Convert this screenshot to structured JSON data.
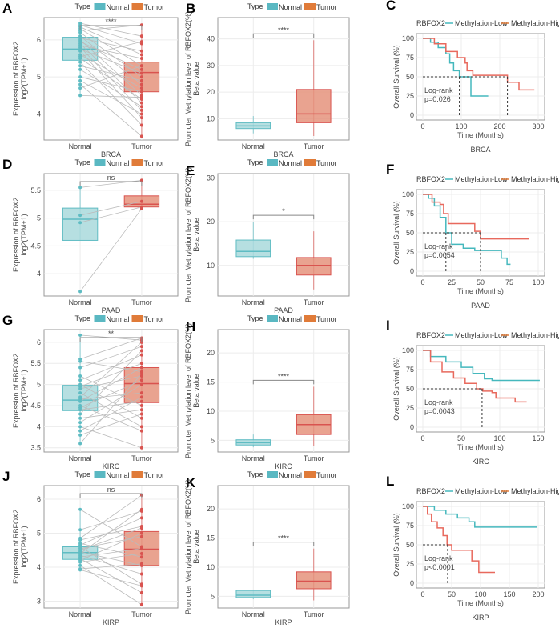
{
  "colors": {
    "normal": "#5ab8c2",
    "tumor": "#e07b39",
    "normal_fill": "#a9d9dc",
    "tumor_fill": "#e5937c",
    "normal_edge": "#5fbcc3",
    "tumor_edge": "#d9534f",
    "km_low": "#45b8bd",
    "km_high": "#e8695d"
  },
  "legend_box": {
    "title": "Type",
    "normal": "Normal",
    "tumor": "Tumor"
  },
  "legend_km": {
    "title": "RBFOX2",
    "low": "Methylation-Low",
    "high": "Methylation-High"
  },
  "labels": {
    "expr_y1": "Expression of RBFOX2",
    "expr_y2": "log2(TPM+1)",
    "meth_y1": "Promoter Methylation level of RBFOX2(%)",
    "meth_y2": "Beta value",
    "km_y": "Overall Survival (%)",
    "km_x": "Time (Months)",
    "logrank": "Log-rank",
    "normal": "Normal",
    "tumor": "Tumor"
  },
  "chart_data": [
    {
      "panel": "A",
      "type": "box-paired",
      "cancer": "BRCA",
      "ylim": [
        3.3,
        6.6
      ],
      "yticks": [
        4,
        5,
        6
      ],
      "sig": "****",
      "normal": {
        "q1": 5.45,
        "median": 5.75,
        "q3": 6.07,
        "min": 4.5,
        "max": 6.45
      },
      "tumor": {
        "q1": 4.6,
        "median": 5.12,
        "q3": 5.4,
        "min": 3.4,
        "max": 6.4
      },
      "pairs": [
        [
          6.45,
          6.1
        ],
        [
          6.4,
          5.9
        ],
        [
          6.35,
          5.6
        ],
        [
          6.3,
          5.3
        ],
        [
          6.25,
          6.4
        ],
        [
          6.2,
          5.0
        ],
        [
          6.1,
          4.8
        ],
        [
          6.05,
          5.7
        ],
        [
          6.0,
          4.5
        ],
        [
          5.95,
          5.2
        ],
        [
          5.9,
          4.3
        ],
        [
          5.85,
          5.5
        ],
        [
          5.8,
          4.1
        ],
        [
          5.75,
          5.1
        ],
        [
          5.7,
          3.9
        ],
        [
          5.6,
          4.7
        ],
        [
          5.55,
          5.95
        ],
        [
          5.5,
          4.4
        ],
        [
          5.4,
          3.7
        ],
        [
          5.3,
          4.9
        ],
        [
          5.2,
          4.2
        ],
        [
          5.0,
          4.6
        ],
        [
          4.9,
          4.0
        ],
        [
          4.8,
          3.4
        ],
        [
          4.7,
          5.3
        ],
        [
          4.5,
          4.45
        ]
      ]
    },
    {
      "panel": "B",
      "type": "box",
      "cancer": "BRCA",
      "ylim": [
        2,
        48
      ],
      "yticks": [
        10,
        20,
        30,
        40
      ],
      "sig": "****",
      "normal": {
        "q1": 6.3,
        "median": 7.3,
        "q3": 8.5,
        "min": 4.5,
        "max": 11
      },
      "tumor": {
        "q1": 8.5,
        "median": 11.8,
        "q3": 21,
        "min": 3.5,
        "max": 39.5
      }
    },
    {
      "panel": "C",
      "type": "km",
      "cancer": "BRCA",
      "xlim": [
        0,
        300
      ],
      "xticks": [
        0,
        100,
        200,
        300
      ],
      "yticks": [
        0,
        25,
        50,
        75,
        100
      ],
      "pvalue": "p=0.026",
      "medians": [
        95,
        220
      ],
      "low": [
        [
          0,
          100
        ],
        [
          20,
          95
        ],
        [
          40,
          88
        ],
        [
          60,
          80
        ],
        [
          70,
          68
        ],
        [
          80,
          58
        ],
        [
          95,
          50
        ],
        [
          125,
          50
        ],
        [
          125,
          25
        ],
        [
          170,
          25
        ]
      ],
      "high": [
        [
          0,
          100
        ],
        [
          30,
          93
        ],
        [
          60,
          83
        ],
        [
          90,
          75
        ],
        [
          110,
          68
        ],
        [
          115,
          58
        ],
        [
          130,
          52
        ],
        [
          220,
          51
        ],
        [
          220,
          43
        ],
        [
          250,
          43
        ],
        [
          250,
          33
        ],
        [
          290,
          33
        ]
      ]
    },
    {
      "panel": "D",
      "type": "box-paired",
      "cancer": "PAAD",
      "ylim": [
        3.6,
        5.8
      ],
      "yticks": [
        4.0,
        4.5,
        5.0,
        5.5
      ],
      "sig": "ns",
      "normal": {
        "q1": 4.6,
        "median": 4.98,
        "q3": 5.18,
        "min": 4.6,
        "max": 5.55
      },
      "tumor": {
        "q1": 5.2,
        "median": 5.25,
        "q3": 5.4,
        "min": 5.15,
        "max": 5.68
      },
      "pairs": [
        [
          5.55,
          5.68
        ],
        [
          5.05,
          5.3
        ],
        [
          4.92,
          5.2
        ],
        [
          3.68,
          5.17
        ]
      ]
    },
    {
      "panel": "E",
      "type": "box",
      "cancer": "PAAD",
      "ylim": [
        3,
        31
      ],
      "yticks": [
        10,
        20,
        30
      ],
      "sig": "*",
      "normal": {
        "q1": 12,
        "median": 13.2,
        "q3": 15.8,
        "min": 11.5,
        "max": 20
      },
      "tumor": {
        "q1": 7.8,
        "median": 10,
        "q3": 11.8,
        "min": 4.5,
        "max": 17.8
      }
    },
    {
      "panel": "F",
      "type": "km",
      "cancer": "PAAD",
      "xlim": [
        0,
        100
      ],
      "xticks": [
        0,
        25,
        50,
        75,
        100
      ],
      "yticks": [
        0,
        25,
        50,
        75,
        100
      ],
      "pvalue": "p=0.0054",
      "medians": [
        20,
        50
      ],
      "low": [
        [
          0,
          100
        ],
        [
          5,
          95
        ],
        [
          10,
          85
        ],
        [
          15,
          70
        ],
        [
          20,
          50
        ],
        [
          25,
          35
        ],
        [
          35,
          30
        ],
        [
          45,
          27
        ],
        [
          68,
          26
        ],
        [
          68,
          17
        ],
        [
          73,
          17
        ],
        [
          73,
          9
        ],
        [
          76,
          9
        ]
      ],
      "high": [
        [
          0,
          100
        ],
        [
          8,
          90
        ],
        [
          15,
          87
        ],
        [
          18,
          75
        ],
        [
          22,
          62
        ],
        [
          45,
          62
        ],
        [
          45,
          52
        ],
        [
          50,
          52
        ],
        [
          50,
          42
        ],
        [
          92,
          42
        ]
      ]
    },
    {
      "panel": "G",
      "type": "box-paired",
      "cancer": "KIRC",
      "ylim": [
        3.4,
        6.3
      ],
      "yticks": [
        3.5,
        4.0,
        4.5,
        5.0,
        5.5,
        6.0
      ],
      "sig": "**",
      "normal": {
        "q1": 4.38,
        "median": 4.63,
        "q3": 4.98,
        "min": 3.6,
        "max": 6.17
      },
      "tumor": {
        "q1": 4.57,
        "median": 5.02,
        "q3": 5.4,
        "min": 3.5,
        "max": 6.1
      },
      "pairs": [
        [
          6.17,
          6.05
        ],
        [
          5.6,
          6.1
        ],
        [
          5.55,
          5.3
        ],
        [
          5.4,
          5.9
        ],
        [
          5.2,
          4.5
        ],
        [
          5.1,
          5.7
        ],
        [
          5.0,
          4.2
        ],
        [
          4.95,
          5.5
        ],
        [
          4.9,
          5.2
        ],
        [
          4.8,
          4.0
        ],
        [
          4.7,
          6.0
        ],
        [
          4.65,
          4.8
        ],
        [
          4.6,
          5.4
        ],
        [
          4.5,
          3.9
        ],
        [
          4.45,
          5.1
        ],
        [
          4.4,
          4.6
        ],
        [
          4.3,
          5.8
        ],
        [
          4.2,
          4.4
        ],
        [
          4.1,
          5.0
        ],
        [
          4.0,
          3.5
        ],
        [
          3.9,
          4.7
        ],
        [
          3.8,
          4.3
        ],
        [
          3.6,
          5.25
        ]
      ]
    },
    {
      "panel": "H",
      "type": "box",
      "cancer": "KIRC",
      "ylim": [
        3,
        24
      ],
      "yticks": [
        5,
        10,
        15,
        20
      ],
      "sig": "****",
      "normal": {
        "q1": 4.2,
        "median": 4.6,
        "q3": 5.1,
        "min": 3.8,
        "max": 6
      },
      "tumor": {
        "q1": 6,
        "median": 7.7,
        "q3": 9.4,
        "min": 4,
        "max": 14.2
      }
    },
    {
      "panel": "I",
      "type": "km",
      "cancer": "KIRC",
      "xlim": [
        0,
        150
      ],
      "xticks": [
        0,
        50,
        100,
        150
      ],
      "yticks": [
        0,
        25,
        50,
        75,
        100
      ],
      "pvalue": "p=0.0043",
      "medians": [
        77
      ],
      "low": [
        [
          0,
          100
        ],
        [
          10,
          92
        ],
        [
          30,
          85
        ],
        [
          50,
          78
        ],
        [
          65,
          70
        ],
        [
          80,
          63
        ],
        [
          90,
          61
        ],
        [
          152,
          61
        ]
      ],
      "high": [
        [
          0,
          100
        ],
        [
          10,
          85
        ],
        [
          25,
          72
        ],
        [
          40,
          64
        ],
        [
          55,
          57
        ],
        [
          70,
          50
        ],
        [
          78,
          47
        ],
        [
          90,
          45
        ],
        [
          95,
          38
        ],
        [
          120,
          38
        ],
        [
          120,
          33
        ],
        [
          135,
          33
        ]
      ]
    },
    {
      "panel": "J",
      "type": "box-paired",
      "cancer": "KIRP",
      "ylim": [
        2.8,
        6.4
      ],
      "yticks": [
        3,
        4,
        5,
        6
      ],
      "sig": "ns",
      "normal": {
        "q1": 4.23,
        "median": 4.43,
        "q3": 4.6,
        "min": 3.92,
        "max": 5.7
      },
      "tumor": {
        "q1": 4.05,
        "median": 4.53,
        "q3": 5.05,
        "min": 2.9,
        "max": 6.12
      },
      "pairs": [
        [
          5.7,
          4.6
        ],
        [
          5.1,
          5.65
        ],
        [
          4.85,
          6.12
        ],
        [
          4.8,
          5.2
        ],
        [
          4.7,
          4.3
        ],
        [
          4.65,
          5.45
        ],
        [
          4.6,
          3.5
        ],
        [
          4.55,
          4.9
        ],
        [
          4.5,
          5.15
        ],
        [
          4.45,
          4.05
        ],
        [
          4.4,
          5.7
        ],
        [
          4.35,
          3.8
        ],
        [
          4.3,
          4.55
        ],
        [
          4.25,
          3.25
        ],
        [
          4.2,
          5.0
        ],
        [
          4.15,
          4.4
        ],
        [
          4.05,
          2.9
        ],
        [
          3.95,
          4.1
        ],
        [
          3.92,
          3.45
        ]
      ]
    },
    {
      "panel": "K",
      "type": "box",
      "cancer": "KIRP",
      "ylim": [
        3,
        24
      ],
      "yticks": [
        5,
        10,
        15,
        20
      ],
      "sig": "****",
      "normal": {
        "q1": 4.8,
        "median": 5.2,
        "q3": 6,
        "min": 4.5,
        "max": 6
      },
      "tumor": {
        "q1": 6.3,
        "median": 7.6,
        "q3": 9.2,
        "min": 4.3,
        "max": 13.2
      }
    },
    {
      "panel": "L",
      "type": "km",
      "cancer": "KIRP",
      "xlim": [
        0,
        200
      ],
      "xticks": [
        0,
        50,
        100,
        150,
        200
      ],
      "yticks": [
        0,
        25,
        50,
        75,
        100
      ],
      "pvalue": "p<0.0001",
      "medians": [
        43
      ],
      "low": [
        [
          0,
          100
        ],
        [
          20,
          95
        ],
        [
          40,
          90
        ],
        [
          60,
          85
        ],
        [
          80,
          80
        ],
        [
          90,
          73
        ],
        [
          198,
          73
        ]
      ],
      "high": [
        [
          0,
          100
        ],
        [
          8,
          90
        ],
        [
          15,
          80
        ],
        [
          25,
          72
        ],
        [
          35,
          62
        ],
        [
          42,
          50
        ],
        [
          50,
          43
        ],
        [
          85,
          43
        ],
        [
          85,
          29
        ],
        [
          97,
          29
        ],
        [
          97,
          14
        ],
        [
          125,
          14
        ]
      ]
    }
  ]
}
